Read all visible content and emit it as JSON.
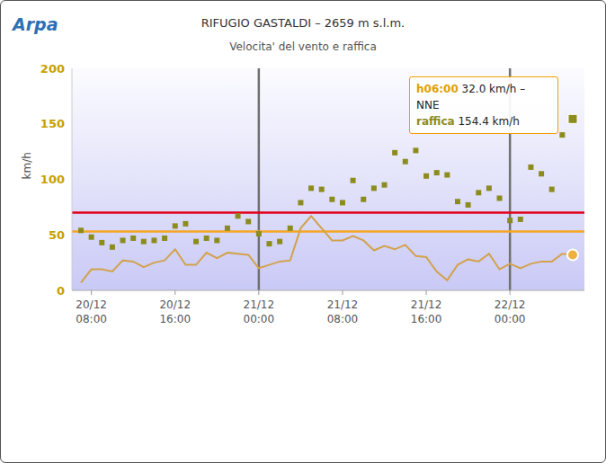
{
  "chart_data": {
    "type": "line",
    "logo": "Arpa",
    "title": "RIFUGIO GASTALDI – 2659 m s.l.m.",
    "subtitle": "Velocita' del vento e raffica",
    "y_label": "km/h",
    "categories": [
      null,
      "20/12 08:00",
      null,
      null,
      null,
      null,
      null,
      null,
      null,
      "20/12 16:00",
      null,
      null,
      null,
      null,
      null,
      null,
      null,
      "21/12 00:00",
      null,
      null,
      null,
      null,
      null,
      null,
      null,
      "21/12 08:00",
      null,
      null,
      null,
      null,
      null,
      null,
      null,
      "21/12 16:00",
      null,
      null,
      null,
      null,
      null,
      null,
      null,
      "22/12 00:00",
      null,
      null,
      null,
      null,
      null,
      null
    ],
    "series": [
      {
        "type": "line",
        "color": "#d2a24c",
        "values": [
          7,
          19,
          19,
          17,
          27,
          26,
          21,
          25,
          27,
          37,
          23,
          23,
          34,
          29,
          34,
          33,
          32,
          20,
          23,
          26,
          27,
          56,
          67,
          56,
          45,
          45,
          49,
          45,
          36,
          40,
          37,
          41,
          31,
          30,
          17,
          9,
          23,
          28,
          26,
          33,
          19,
          24,
          20,
          24,
          26,
          26,
          33,
          32.0
        ]
      },
      {
        "name": "raffica",
        "type": "scatter",
        "marker": "square",
        "color": "#8c8c1e",
        "values": [
          54,
          48,
          43,
          39,
          45,
          47,
          44,
          45,
          47,
          58,
          60,
          44,
          47,
          45,
          56,
          67,
          62,
          51,
          42,
          44,
          56,
          79,
          92,
          91,
          82,
          79,
          99,
          82,
          92,
          95,
          124,
          116,
          126,
          103,
          106,
          104,
          80,
          77,
          88,
          92,
          83,
          63,
          64,
          111,
          105,
          91,
          140,
          154.4
        ]
      }
    ],
    "ylim": [
      0,
      200
    ],
    "yticks": [
      0,
      50,
      100,
      150,
      200
    ],
    "grid": false,
    "hlines": [
      {
        "value": 70,
        "color": "#e3001b"
      },
      {
        "value": 53,
        "color": "#f5a623"
      }
    ],
    "vlines": [
      {
        "at": "21/12 00:00",
        "color": "#707070"
      },
      {
        "at": "22/12 00:00",
        "color": "#707070"
      }
    ],
    "annotation": {
      "time": "h06:00",
      "text": "32.0 km/h – NNE",
      "label": "raffica",
      "value_text": "154.4 km/h"
    }
  }
}
